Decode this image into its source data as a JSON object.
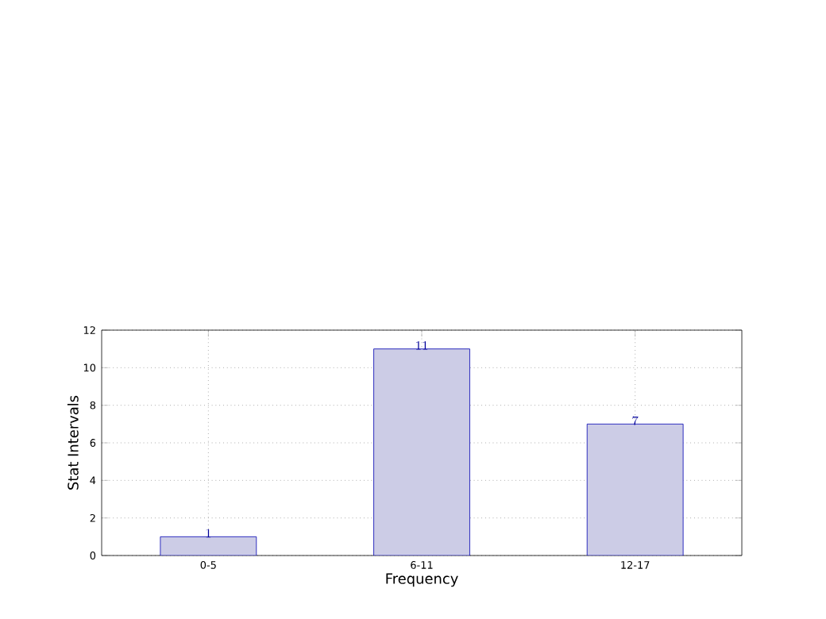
{
  "chart_data": {
    "type": "bar",
    "xlabel": "Frequency",
    "ylabel": "Stat Intervals",
    "categories": [
      "0-5",
      "6-11",
      "12-17"
    ],
    "values": [
      1,
      11,
      7
    ],
    "color": "#cccce6",
    "ylim": [
      0,
      12
    ],
    "yticks": [
      0,
      2,
      4,
      6,
      8,
      10,
      12
    ],
    "grid": true,
    "data_labels": true
  }
}
